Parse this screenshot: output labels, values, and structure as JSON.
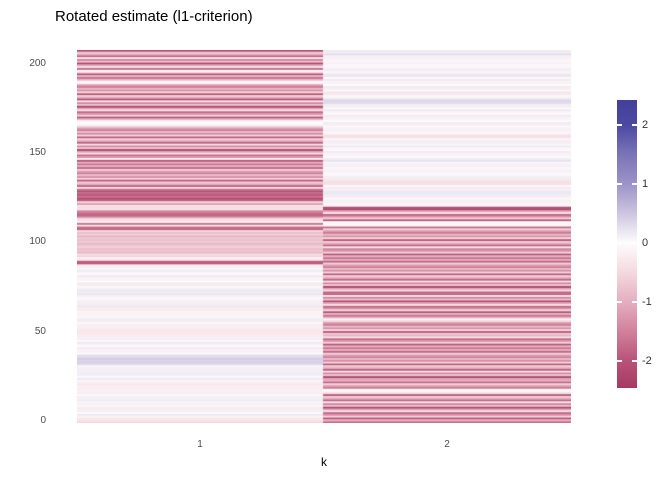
{
  "window": {
    "background": "#FFFFFF"
  },
  "colors": {
    "axis_text": "#4D4D4D",
    "title_text": "#000000",
    "legend_text": "#333333",
    "panel_background": "#FFFFFF"
  },
  "chart_data": {
    "type": "heatmap",
    "title": "Rotated estimate (l1-criterion)",
    "xlabel": "k",
    "ylabel": "",
    "x_categories": [
      "1",
      "2"
    ],
    "y_axis_ticks": [
      0,
      50,
      100,
      150,
      200
    ],
    "n_rows": 207,
    "value_domain": [
      -2.46,
      2.42
    ],
    "grid": "off",
    "legend_position": "right",
    "legend_ticks": [
      2,
      1,
      0,
      -1,
      -2
    ],
    "colorscale": [
      [
        -2.46,
        "#A63A62"
      ],
      [
        -2.0,
        "#B85377"
      ],
      [
        -1.5,
        "#D1819B"
      ],
      [
        -1.0,
        "#E4AEC0"
      ],
      [
        -0.5,
        "#F4D9E0"
      ],
      [
        0.0,
        "#FDFCFD"
      ],
      [
        0.5,
        "#CCC5E0"
      ],
      [
        1.0,
        "#9C93C8"
      ],
      [
        1.5,
        "#7A74B7"
      ],
      [
        2.0,
        "#4C49A2"
      ],
      [
        2.42,
        "#423F9B"
      ]
    ],
    "series": [
      {
        "name": "1",
        "values": [
          -0.5,
          -0.35,
          -0.3,
          -0.1,
          0.18,
          -0.05,
          -0.22,
          0.12,
          -0.25,
          0.04,
          -0.18,
          -0.12,
          0.15,
          -0.2,
          0.1,
          -0.06,
          -0.25,
          -0.2,
          -0.22,
          -0.18,
          -0.2,
          -0.3,
          -0.2,
          -0.1,
          0.18,
          -0.05,
          0.12,
          0.15,
          0.1,
          0.12,
          -0.18,
          -0.12,
          0.3,
          0.42,
          0.35,
          0.45,
          0.32,
          0.28,
          -0.02,
          -0.15,
          0.08,
          -0.3,
          0.02,
          -0.15,
          0.18,
          -0.05,
          -0.22,
          0.12,
          -0.2,
          -0.3,
          -0.28,
          -0.32,
          -0.25,
          -0.2,
          0.1,
          -0.06,
          -0.25,
          0.15,
          -0.12,
          -0.1,
          -0.14,
          -0.1,
          -0.25,
          -0.2,
          0.18,
          -0.25,
          -0.22,
          0.12,
          -0.08,
          0.04,
          -0.18,
          0.2,
          0.15,
          0.18,
          0.1,
          -0.06,
          -0.25,
          0.15,
          -0.02,
          -0.15,
          0.08,
          -0.3,
          0.02,
          -0.1,
          0.18,
          -0.05,
          -0.22,
          0.12,
          -2.0,
          -1.9,
          -0.3,
          -0.15,
          -0.6,
          -0.4,
          -0.9,
          -0.7,
          -0.85,
          -0.6,
          -0.75,
          -0.9,
          -0.65,
          -0.8,
          -0.7,
          -0.95,
          -0.6,
          -0.8,
          -0.5,
          -1.9,
          -1.8,
          -0.2,
          -1.7,
          -0.25,
          -0.4,
          -0.6,
          -1.6,
          -1.8,
          -1.7,
          -1.5,
          -0.35,
          -0.5,
          -0.3,
          -1.2,
          -0.5,
          -1.9,
          -2.2,
          -1.6,
          -2.0,
          -1.8,
          -2.1,
          -1.7,
          -0.25,
          -1.9,
          -1.0,
          -0.6,
          -2.0,
          -0.45,
          -1.4,
          -0.8,
          -1.6,
          -1.2,
          -0.55,
          -1.85,
          -0.95,
          -1.7,
          -0.9,
          -2.1,
          -0.1,
          -1.3,
          -1.8,
          -0.35,
          -1.1,
          -2.3,
          -0.7,
          -1.5,
          -0.25,
          -1.9,
          -1.0,
          -0.6,
          -2.0,
          -0.45,
          -1.4,
          -0.8,
          -1.6,
          -1.2,
          -0.55,
          -0.05,
          -0.02,
          -0.06,
          -0.9,
          -2.1,
          -0.5,
          -1.3,
          -1.8,
          -0.35,
          -1.1,
          -2.3,
          -0.7,
          -1.5,
          -0.25,
          -2.2,
          -1.0,
          -0.6,
          -2.0,
          -0.45,
          -1.4,
          -0.8,
          -1.6,
          -1.2,
          -0.12,
          -0.08,
          -0.95,
          -1.7,
          -0.9,
          -2.1,
          -0.5,
          -0.06,
          -1.8,
          -0.35,
          -1.1,
          -2.3,
          -0.7,
          -1.5,
          -0.25,
          -1.9,
          -1.0,
          -0.6,
          -2.0
        ]
      },
      {
        "name": "2",
        "values": [
          -1.7,
          -0.9,
          -2.1,
          -0.5,
          -1.3,
          -1.8,
          -0.35,
          -1.1,
          -2.3,
          -0.7,
          -1.5,
          -0.25,
          -1.9,
          -1.0,
          -0.6,
          -2.0,
          -0.45,
          -0.1,
          -0.06,
          -1.6,
          -1.2,
          -0.55,
          -1.85,
          -0.95,
          -1.1,
          -2.3,
          -0.7,
          -1.5,
          -0.25,
          -1.9,
          -1.0,
          -0.6,
          -2.0,
          -0.45,
          -1.4,
          -0.8,
          -1.6,
          -1.2,
          -0.55,
          -1.85,
          -0.95,
          -1.7,
          -0.9,
          -2.1,
          -0.5,
          -1.3,
          -1.8,
          -0.35,
          -1.0,
          -0.6,
          -2.0,
          -0.45,
          -1.4,
          -0.8,
          -1.6,
          -1.2,
          -0.55,
          -0.08,
          -0.95,
          -1.7,
          -0.9,
          -2.1,
          -0.5,
          -1.3,
          -1.8,
          -0.35,
          -1.1,
          -2.3,
          -0.7,
          -1.5,
          -0.25,
          -1.9,
          -1.8,
          -0.35,
          -1.1,
          -2.3,
          -0.7,
          -1.5,
          -0.25,
          -1.9,
          -1.0,
          -0.6,
          -2.0,
          -0.45,
          -1.4,
          -0.8,
          -1.6,
          -1.2,
          -0.55,
          -1.85,
          -0.95,
          -1.7,
          -0.9,
          -2.1,
          -0.5,
          -1.3,
          -1.5,
          -0.25,
          -1.9,
          -1.0,
          -0.6,
          -2.0,
          -0.45,
          -1.4,
          -0.8,
          -1.6,
          -1.2,
          -0.55,
          -1.85,
          -0.05,
          -0.08,
          -0.04,
          -2.1,
          -0.5,
          -1.3,
          -1.8,
          -0.35,
          -1.1,
          -2.3,
          -2.2,
          -0.12,
          0.05,
          -0.2,
          0.1,
          -0.06,
          -0.25,
          0.15,
          0.2,
          0.18,
          0.08,
          -0.3,
          0.02,
          -0.4,
          -0.45,
          -0.35,
          -0.22,
          0.12,
          -0.08,
          0.04,
          -0.18,
          -0.12,
          0.05,
          -0.2,
          0.1,
          -0.06,
          0.25,
          0.15,
          -0.02,
          -0.15,
          0.08,
          -0.3,
          0.02,
          -0.1,
          0.18,
          -0.05,
          -0.22,
          0.12,
          -0.08,
          -0.4,
          -0.45,
          -0.12,
          0.05,
          -0.2,
          0.1,
          -0.06,
          -0.25,
          0.15,
          -0.02,
          -0.15,
          0.08,
          -0.3,
          0.02,
          -0.1,
          0.18,
          -0.05,
          -0.22,
          0.12,
          0.3,
          0.35,
          0.28,
          -0.12,
          0.05,
          -0.3,
          -0.35,
          -0.06,
          -0.25,
          0.15,
          -0.02,
          -0.15,
          0.08,
          -0.3,
          0.02,
          0.2,
          0.18,
          -0.05,
          -0.22,
          0.12,
          -0.08,
          0.04,
          -0.18,
          -0.12,
          0.05,
          -0.2,
          0.1,
          0.3,
          -0.25,
          0.15
        ]
      }
    ]
  }
}
